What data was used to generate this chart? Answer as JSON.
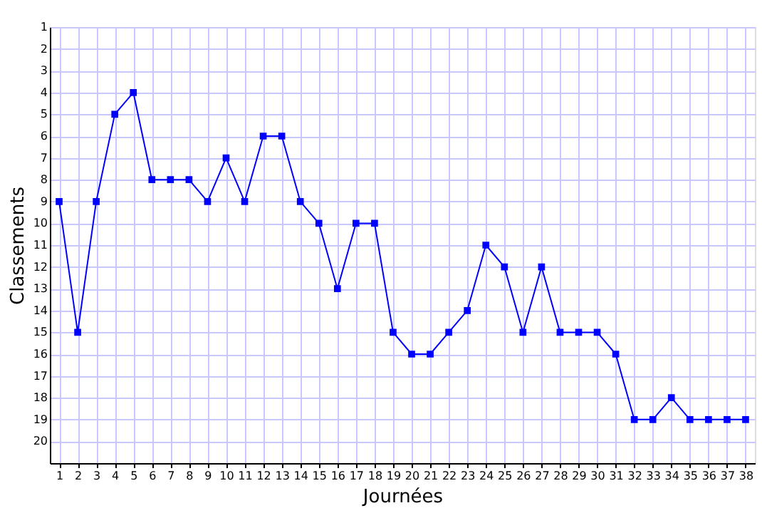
{
  "chart_data": {
    "type": "line",
    "xlabel": "Journées",
    "ylabel": "Classements",
    "x": [
      1,
      2,
      3,
      4,
      5,
      6,
      7,
      8,
      9,
      10,
      11,
      12,
      13,
      14,
      15,
      16,
      17,
      18,
      19,
      20,
      21,
      22,
      23,
      24,
      25,
      26,
      27,
      28,
      29,
      30,
      31,
      32,
      33,
      34,
      35,
      36,
      37,
      38
    ],
    "series": [
      {
        "color": "#0000ff",
        "values": [
          9,
          15,
          9,
          5,
          4,
          8,
          8,
          8,
          9,
          7,
          9,
          6,
          6,
          9,
          10,
          13,
          10,
          10,
          15,
          16,
          16,
          15,
          14,
          11,
          12,
          15,
          12,
          15,
          15,
          15,
          16,
          19,
          19,
          18,
          19,
          19,
          19,
          19
        ]
      }
    ],
    "xlim": [
      0.5,
      38.5
    ],
    "xticks": [
      1,
      2,
      3,
      4,
      5,
      6,
      7,
      8,
      9,
      10,
      11,
      12,
      13,
      14,
      15,
      16,
      17,
      18,
      19,
      20,
      21,
      22,
      23,
      24,
      25,
      26,
      27,
      28,
      29,
      30,
      31,
      32,
      33,
      34,
      35,
      36,
      37,
      38
    ],
    "ylim": [
      21,
      1
    ],
    "yticks": [
      1,
      2,
      3,
      4,
      5,
      6,
      7,
      8,
      9,
      10,
      11,
      12,
      13,
      14,
      15,
      16,
      17,
      18,
      19,
      20
    ],
    "grid": true,
    "marker": "square",
    "line_style": "solid"
  }
}
